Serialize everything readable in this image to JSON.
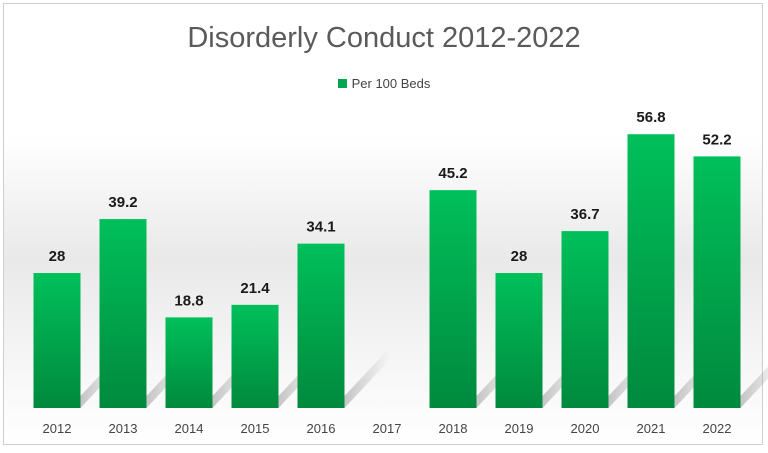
{
  "chart_data": {
    "type": "bar",
    "title": "Disorderly Conduct 2012-2022",
    "categories": [
      "2012",
      "2013",
      "2014",
      "2015",
      "2016",
      "2017",
      "2018",
      "2019",
      "2020",
      "2021",
      "2022"
    ],
    "series": [
      {
        "name": "Per 100 Beds",
        "values": [
          28,
          39.2,
          18.8,
          21.4,
          34.1,
          null,
          45.2,
          28,
          36.7,
          56.8,
          52.2
        ],
        "labels": [
          "28",
          "39.2",
          "18.8",
          "21.4",
          "34.1",
          "",
          "45.2",
          "28",
          "36.7",
          "56.8",
          "52.2"
        ]
      }
    ],
    "ylim": [
      0,
      70
    ],
    "grid": false,
    "legend_position": "top",
    "colors": {
      "bar_top": "#00c05a",
      "bar_bottom": "#008a3e",
      "legend": "#00a650"
    }
  }
}
